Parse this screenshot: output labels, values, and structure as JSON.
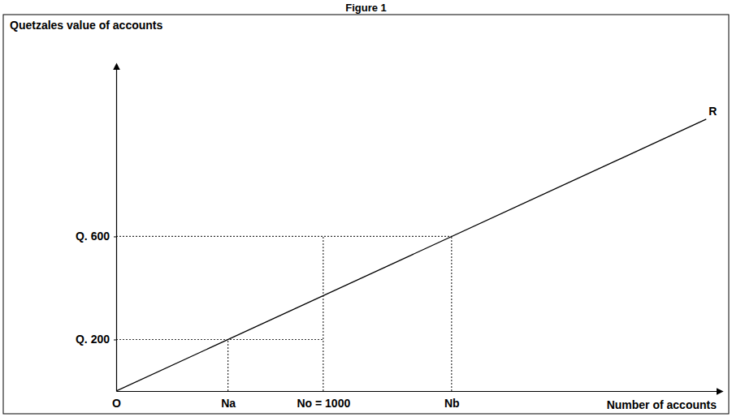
{
  "chart_data": {
    "type": "line",
    "title": "Figure 1",
    "ylabel": "Quetzales value of accounts",
    "xlabel": "Number of accounts",
    "x": [
      0,
      2850
    ],
    "series": [
      {
        "name": "R",
        "color": "#000000",
        "values": [
          0,
          1055
        ]
      }
    ],
    "xlim": [
      0,
      2900
    ],
    "ylim": [
      0,
      1250
    ],
    "xticks": [
      {
        "value": 0,
        "label": "O"
      },
      {
        "value": 540,
        "label": "Na"
      },
      {
        "value": 1000,
        "label": "No = 1000"
      },
      {
        "value": 1620,
        "label": "Nb"
      }
    ],
    "yticks": [
      {
        "value": 200,
        "label": "Q. 200"
      },
      {
        "value": 600,
        "label": "Q. 600"
      }
    ],
    "guides": [
      {
        "x": [
          0,
          1620
        ],
        "y": [
          600,
          600
        ]
      },
      {
        "x": [
          0,
          1000
        ],
        "y": [
          200,
          200
        ]
      },
      {
        "x": [
          540,
          540
        ],
        "y": [
          0,
          200
        ]
      },
      {
        "x": [
          1000,
          1000
        ],
        "y": [
          0,
          600
        ]
      },
      {
        "x": [
          1620,
          1620
        ],
        "y": [
          0,
          600
        ]
      }
    ],
    "grid": false
  }
}
